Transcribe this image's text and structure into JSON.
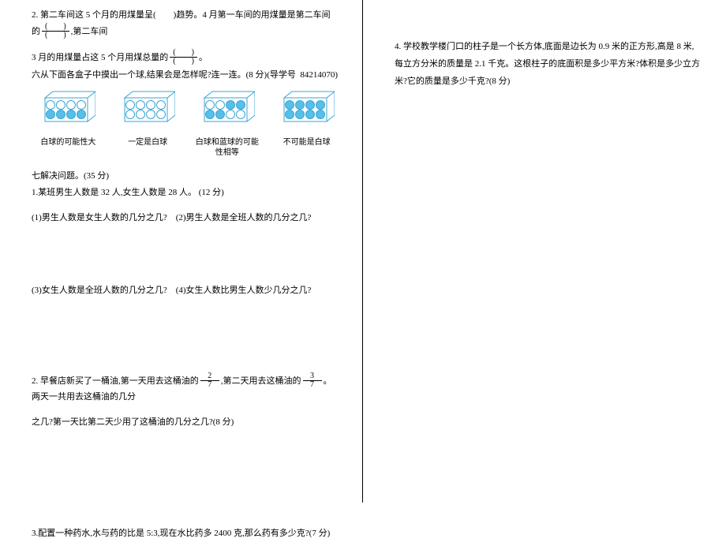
{
  "left": {
    "q2_line1": "2. 第二车间这 5 个月的用煤量呈(　　)趋势。4 月第一车间的用煤量是第二车间的",
    "q2_line1_end": ",第二车间",
    "q2_line2_a": "3 月的用煤量占这 5 个月用煤总量的",
    "q2_line2_b": "。",
    "q6_prompt": "六从下面各盒子中摸出一个球,结果会是怎样呢?连一连。(8 分)(导学号 84214070)",
    "captions": {
      "c1": "白球的可能性大",
      "c2": "一定是白球",
      "c3": "白球和蓝球的可能性相等",
      "c4": "不可能是白球"
    },
    "boxes": [
      {
        "cols": 4,
        "rows": 2,
        "topFill": [
          "w",
          "w",
          "w",
          "w"
        ],
        "botFill": [
          "b",
          "b",
          "b",
          "b"
        ]
      },
      {
        "cols": 4,
        "rows": 2,
        "topFill": [
          "w",
          "w",
          "w",
          "w"
        ],
        "botFill": [
          "w",
          "w",
          "w",
          "w"
        ]
      },
      {
        "cols": 4,
        "rows": 2,
        "topFill": [
          "w",
          "w",
          "b",
          "b"
        ],
        "botFill": [
          "b",
          "b",
          "w",
          "w"
        ]
      },
      {
        "cols": 4,
        "rows": 2,
        "topFill": [
          "b",
          "b",
          "b",
          "b"
        ],
        "botFill": [
          "b",
          "b",
          "b",
          "b"
        ]
      }
    ],
    "box_colors": {
      "w": "#ffffff",
      "b": "#58c0e8",
      "stroke": "#3aa4d4"
    },
    "q7_header": "七解决问题。(35 分)",
    "q7_1": "1.某班男生人数是 32 人,女生人数是 28 人。 (12 分)",
    "q7_1_12": "(1)男生人数是女生人数的几分之几? (2)男生人数是全班人数的几分之几?",
    "q7_1_34": "(3)女生人数是全班人数的几分之几? (4)女生人数比男生人数少几分之几?",
    "q7_2_a": "2. 早餐店新买了一桶油,第一天用去这桶油的",
    "q7_2_f1_num": "2",
    "q7_2_f1_den": "7",
    "q7_2_b": ",第二天用去这桶油的",
    "q7_2_f2_num": "3",
    "q7_2_f2_den": "7",
    "q7_2_c": "。两天一共用去这桶油的几分",
    "q7_2_line2": "之几?第一天比第二天少用了这桶油的几分之几?(8 分)",
    "q7_3": "3.配置一种药水,水与药的比是 5:3,现在水比药多 2400 克,那么药有多少克?(7 分)",
    "blank_frac_num": "(　　)",
    "blank_frac_den": "(　　)"
  },
  "right": {
    "q4_line1": "4. 学校教学楼门口的柱子是一个长方体,底面是边长为 0.9 米的正方形,高是 8 米,",
    "q4_line2": "每立方分米的质量是 2.1 千克。这根柱子的底面积是多少平方米?体积是多少立方",
    "q4_line3": "米?它的质量是多少千克?(8 分)"
  }
}
